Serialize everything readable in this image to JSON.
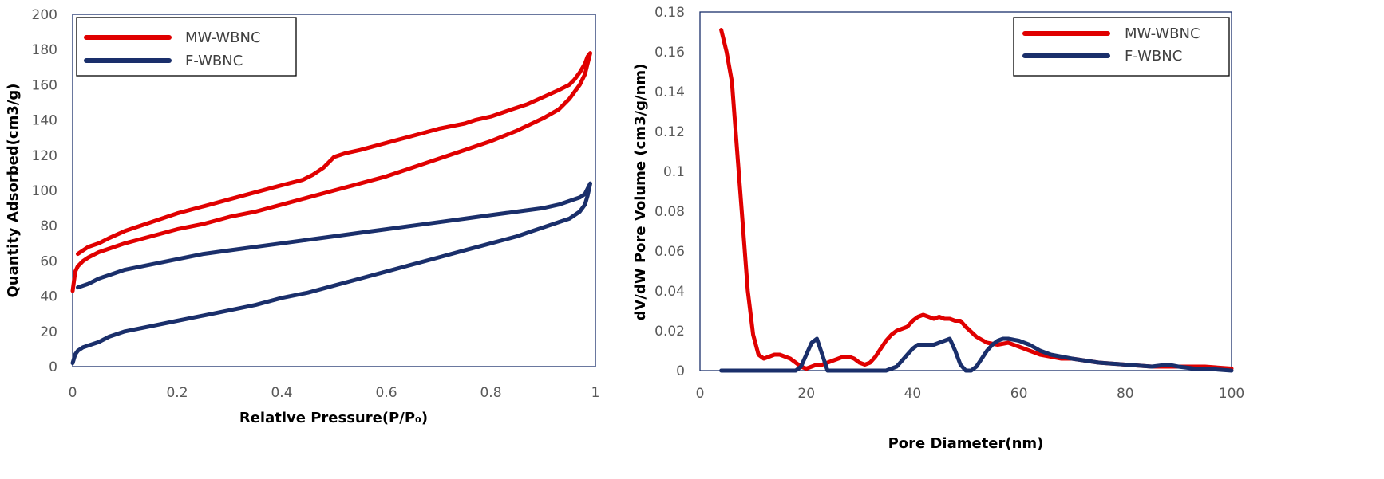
{
  "chart_data": [
    {
      "type": "line",
      "xlabel": "Relative Pressure(P/P₀)",
      "ylabel": "Quantity Adsorbed(cm3/g)",
      "xlim": [
        0,
        1
      ],
      "ylim": [
        0,
        200
      ],
      "xticks": [
        "0",
        "0.2",
        "0.4",
        "0.6",
        "0.8",
        "1"
      ],
      "yticks": [
        "0",
        "20",
        "40",
        "60",
        "80",
        "100",
        "120",
        "140",
        "160",
        "180",
        "200"
      ],
      "xtick_values": [
        0,
        0.2,
        0.4,
        0.6,
        0.8,
        1
      ],
      "ytick_values": [
        0,
        20,
        40,
        60,
        80,
        100,
        120,
        140,
        160,
        180,
        200
      ],
      "grid": false,
      "legend_position": "top-left",
      "series": [
        {
          "name": "MW-WBNC",
          "color": "#e00000",
          "x": [
            0.0,
            0.005,
            0.01,
            0.02,
            0.03,
            0.05,
            0.08,
            0.1,
            0.15,
            0.2,
            0.25,
            0.3,
            0.35,
            0.4,
            0.45,
            0.5,
            0.55,
            0.6,
            0.65,
            0.7,
            0.75,
            0.8,
            0.85,
            0.9,
            0.93,
            0.95,
            0.97,
            0.98,
            0.985,
            0.99,
            0.985,
            0.98,
            0.97,
            0.96,
            0.95,
            0.93,
            0.9,
            0.87,
            0.84,
            0.8,
            0.77,
            0.75,
            0.7,
            0.65,
            0.6,
            0.55,
            0.52,
            0.5,
            0.48,
            0.46,
            0.44,
            0.4,
            0.35,
            0.3,
            0.25,
            0.2,
            0.15,
            0.1,
            0.07,
            0.05,
            0.03,
            0.02,
            0.01
          ],
          "values": [
            43,
            54,
            57,
            60,
            62,
            65,
            68,
            70,
            74,
            78,
            81,
            85,
            88,
            92,
            96,
            100,
            104,
            108,
            113,
            118,
            123,
            128,
            134,
            141,
            146,
            152,
            160,
            166,
            172,
            178,
            176,
            172,
            167,
            163,
            160,
            157,
            153,
            149,
            146,
            142,
            140,
            138,
            135,
            131,
            127,
            123,
            121,
            119,
            113,
            109,
            106,
            103,
            99,
            95,
            91,
            87,
            82,
            77,
            73,
            70,
            68,
            66,
            64
          ]
        },
        {
          "name": "F-WBNC",
          "color": "#1a2f6b",
          "x": [
            0.0,
            0.005,
            0.01,
            0.02,
            0.03,
            0.05,
            0.07,
            0.1,
            0.15,
            0.2,
            0.25,
            0.3,
            0.35,
            0.4,
            0.45,
            0.5,
            0.55,
            0.6,
            0.65,
            0.7,
            0.75,
            0.8,
            0.85,
            0.88,
            0.9,
            0.93,
            0.95,
            0.97,
            0.98,
            0.985,
            0.99,
            0.985,
            0.98,
            0.97,
            0.95,
            0.93,
            0.9,
            0.85,
            0.8,
            0.75,
            0.7,
            0.65,
            0.6,
            0.55,
            0.5,
            0.45,
            0.4,
            0.35,
            0.3,
            0.25,
            0.2,
            0.15,
            0.1,
            0.07,
            0.05,
            0.03,
            0.01
          ],
          "values": [
            2,
            7,
            9,
            11,
            12,
            14,
            17,
            20,
            23,
            26,
            29,
            32,
            35,
            39,
            42,
            46,
            50,
            54,
            58,
            62,
            66,
            70,
            74,
            77,
            79,
            82,
            84,
            88,
            92,
            97,
            104,
            101,
            98,
            96,
            94,
            92,
            90,
            88,
            86,
            84,
            82,
            80,
            78,
            76,
            74,
            72,
            70,
            68,
            66,
            64,
            61,
            58,
            55,
            52,
            50,
            47,
            45
          ]
        }
      ]
    },
    {
      "type": "line",
      "xlabel": "Pore Diameter(nm)",
      "ylabel": "dV/dW Pore Volume (cm3/g/nm)",
      "xlim": [
        0,
        100
      ],
      "ylim": [
        0,
        0.18
      ],
      "xticks": [
        "0",
        "20",
        "40",
        "60",
        "80",
        "100"
      ],
      "yticks": [
        "0",
        "0.02",
        "0.04",
        "0.06",
        "0.08",
        "0.1",
        "0.12",
        "0.14",
        "0.16",
        "0.18"
      ],
      "xtick_values": [
        0,
        20,
        40,
        60,
        80,
        100
      ],
      "ytick_values": [
        0,
        0.02,
        0.04,
        0.06,
        0.08,
        0.1,
        0.12,
        0.14,
        0.16,
        0.18
      ],
      "grid": false,
      "legend_position": "top-right",
      "series": [
        {
          "name": "MW-WBNC",
          "color": "#e00000",
          "x": [
            4,
            5,
            6,
            7,
            8,
            9,
            10,
            11,
            12,
            13,
            14,
            15,
            16,
            17,
            18,
            19,
            20,
            21,
            22,
            23,
            24,
            25,
            26,
            27,
            28,
            29,
            30,
            31,
            32,
            33,
            34,
            35,
            36,
            37,
            38,
            39,
            40,
            41,
            42,
            43,
            44,
            45,
            46,
            47,
            48,
            49,
            50,
            52,
            54,
            56,
            58,
            60,
            62,
            64,
            66,
            68,
            70,
            75,
            80,
            85,
            90,
            95,
            100
          ],
          "values": [
            0.171,
            0.16,
            0.145,
            0.11,
            0.075,
            0.04,
            0.018,
            0.008,
            0.006,
            0.007,
            0.008,
            0.008,
            0.007,
            0.006,
            0.004,
            0.002,
            0.001,
            0.002,
            0.003,
            0.003,
            0.004,
            0.005,
            0.006,
            0.007,
            0.007,
            0.006,
            0.004,
            0.003,
            0.004,
            0.007,
            0.011,
            0.015,
            0.018,
            0.02,
            0.021,
            0.022,
            0.025,
            0.027,
            0.028,
            0.027,
            0.026,
            0.027,
            0.026,
            0.026,
            0.025,
            0.025,
            0.022,
            0.017,
            0.014,
            0.013,
            0.014,
            0.012,
            0.01,
            0.008,
            0.007,
            0.006,
            0.006,
            0.004,
            0.003,
            0.002,
            0.002,
            0.002,
            0.001
          ]
        },
        {
          "name": "F-WBNC",
          "color": "#1a2f6b",
          "x": [
            4,
            10,
            15,
            18,
            19,
            20,
            21,
            22,
            23,
            24,
            25,
            30,
            35,
            37,
            38,
            39,
            40,
            41,
            42,
            43,
            44,
            45,
            46,
            47,
            48,
            49,
            50,
            51,
            52,
            53,
            54,
            55,
            56,
            57,
            58,
            60,
            62,
            64,
            66,
            68,
            70,
            75,
            80,
            85,
            88,
            90,
            93,
            95,
            100
          ],
          "values": [
            0,
            0,
            0,
            0,
            0.002,
            0.008,
            0.014,
            0.016,
            0.008,
            0,
            0,
            0,
            0,
            0.002,
            0.005,
            0.008,
            0.011,
            0.013,
            0.013,
            0.013,
            0.013,
            0.014,
            0.015,
            0.016,
            0.01,
            0.003,
            0,
            0,
            0.002,
            0.006,
            0.01,
            0.013,
            0.015,
            0.016,
            0.016,
            0.015,
            0.013,
            0.01,
            0.008,
            0.007,
            0.006,
            0.004,
            0.003,
            0.002,
            0.003,
            0.002,
            0.001,
            0.001,
            0
          ]
        }
      ]
    }
  ]
}
